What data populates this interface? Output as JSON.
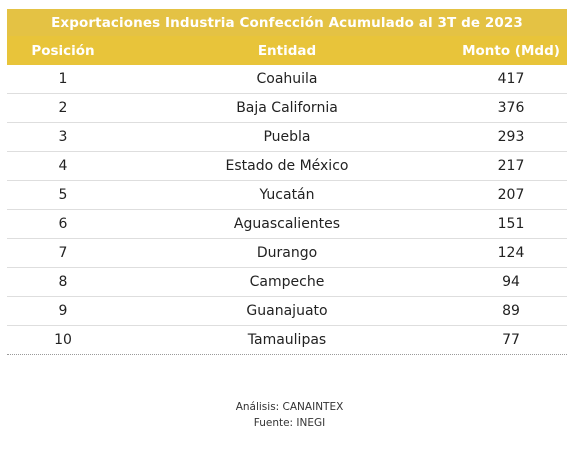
{
  "chart_data": {
    "type": "table",
    "title": "Exportaciones Industria Confección Acumulado al 3T de 2023",
    "columns": [
      "Posición",
      "Entidad",
      "Monto (Mdd)"
    ],
    "rows": [
      {
        "posicion": "1",
        "entidad": "Coahuila",
        "monto": "417"
      },
      {
        "posicion": "2",
        "entidad": "Baja California",
        "monto": "376"
      },
      {
        "posicion": "3",
        "entidad": "Puebla",
        "monto": "293"
      },
      {
        "posicion": "4",
        "entidad": "Estado de México",
        "monto": "217"
      },
      {
        "posicion": "5",
        "entidad": "Yucatán",
        "monto": "207"
      },
      {
        "posicion": "6",
        "entidad": "Aguascalientes",
        "monto": "151"
      },
      {
        "posicion": "7",
        "entidad": "Durango",
        "monto": "124"
      },
      {
        "posicion": "8",
        "entidad": "Campeche",
        "monto": "94"
      },
      {
        "posicion": "9",
        "entidad": "Guanajuato",
        "monto": "89"
      },
      {
        "posicion": "10",
        "entidad": "Tamaulipas",
        "monto": "77"
      }
    ]
  },
  "footer": {
    "analysis": "Análisis: CANAINTEX",
    "source": "Fuente: INEGI"
  },
  "colors": {
    "title_bg": "#e4c244",
    "header_bg": "#e8c43a",
    "header_text": "#ffffff"
  }
}
